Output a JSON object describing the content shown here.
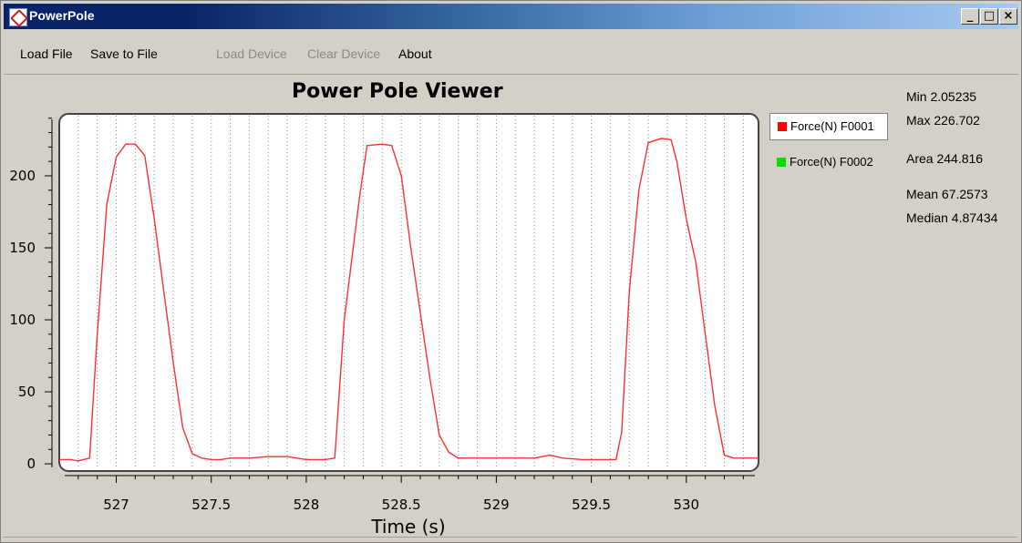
{
  "window": {
    "title": "PowerPole",
    "minimize_label": "_",
    "maximize_label": "□",
    "close_label": "×"
  },
  "menu": {
    "load_file": "Load File",
    "save_to_file": "Save to File",
    "load_device": "Load Device",
    "clear_device": "Clear Device",
    "about": "About"
  },
  "legend": {
    "items": [
      {
        "label": "Force(N) F0001",
        "color": "#ff0000"
      },
      {
        "label": "Force(N) F0002",
        "color": "#00dd00"
      }
    ]
  },
  "stats": {
    "min": "Min 2.05235",
    "max": "Max 226.702",
    "area": "Area 244.816",
    "mean": "Mean 67.2573",
    "median": "Median 4.87434"
  },
  "chart_data": {
    "type": "line",
    "title": "Power Pole Viewer",
    "xlabel": "Time (s)",
    "ylabel": "",
    "xlim": [
      526.7,
      530.38
    ],
    "ylim": [
      -5,
      243
    ],
    "x_ticks": [
      527,
      527.5,
      528,
      528.5,
      529,
      529.5,
      530
    ],
    "x_tick_labels": [
      "527",
      "527.5",
      "528",
      "528.5",
      "529",
      "529.5",
      "530"
    ],
    "y_ticks": [
      0,
      50,
      100,
      150,
      200
    ],
    "y_tick_labels": [
      "0",
      "50",
      "100",
      "150",
      "200"
    ],
    "grid": true,
    "legend_position": "right",
    "series": [
      {
        "name": "Force(N) F0001",
        "color": "#ff3030",
        "x": [
          526.7,
          526.76,
          526.8,
          526.86,
          526.9,
          526.95,
          527.0,
          527.05,
          527.1,
          527.15,
          527.2,
          527.25,
          527.3,
          527.35,
          527.4,
          527.45,
          527.5,
          527.55,
          527.6,
          527.7,
          527.8,
          527.9,
          527.95,
          528.0,
          528.05,
          528.1,
          528.15,
          528.2,
          528.28,
          528.32,
          528.4,
          528.45,
          528.5,
          528.55,
          528.6,
          528.65,
          528.7,
          528.75,
          528.8,
          528.85,
          528.9,
          529.0,
          529.1,
          529.2,
          529.28,
          529.35,
          529.45,
          529.55,
          529.63,
          529.66,
          529.7,
          529.75,
          529.8,
          529.87,
          529.92,
          529.95,
          530.0,
          530.05,
          530.1,
          530.15,
          530.2,
          530.25,
          530.3,
          530.38
        ],
        "y": [
          3,
          3,
          2,
          4,
          90,
          180,
          213,
          222,
          222,
          214,
          170,
          120,
          70,
          25,
          7,
          4,
          3,
          3,
          4,
          4,
          5,
          5,
          4,
          3,
          3,
          3,
          4,
          100,
          185,
          221,
          222,
          221,
          200,
          150,
          105,
          60,
          20,
          8,
          4,
          4,
          4,
          4,
          4,
          4,
          6,
          4,
          3,
          3,
          3,
          22,
          120,
          190,
          223,
          226,
          225,
          210,
          170,
          140,
          90,
          40,
          6,
          4,
          4,
          4
        ]
      },
      {
        "name": "Force(N) F0002",
        "color": "#00dd00",
        "x": [],
        "y": []
      }
    ]
  }
}
